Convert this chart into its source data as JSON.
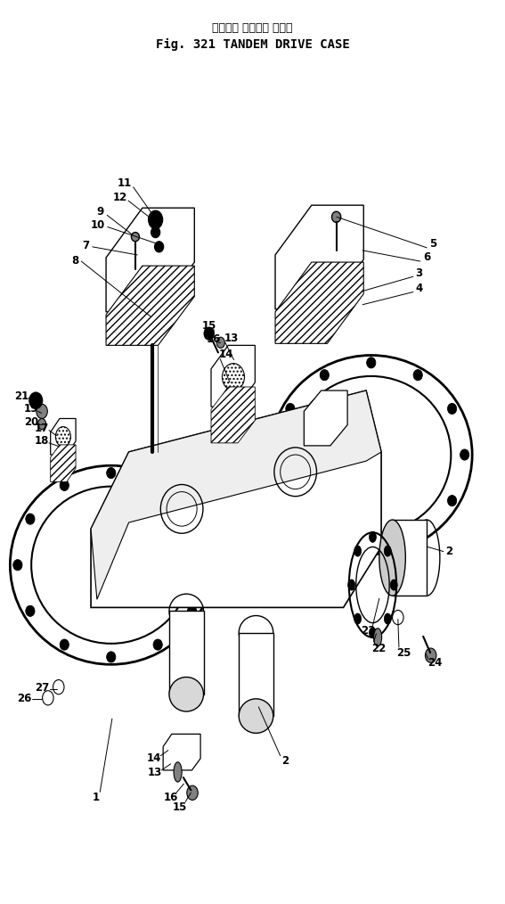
{
  "title_japanese": "タンデム ドライブ ケース",
  "title_english": "Fig. 321 TANDEM DRIVE CASE",
  "bg_color": "#ffffff",
  "line_color": "#000000"
}
